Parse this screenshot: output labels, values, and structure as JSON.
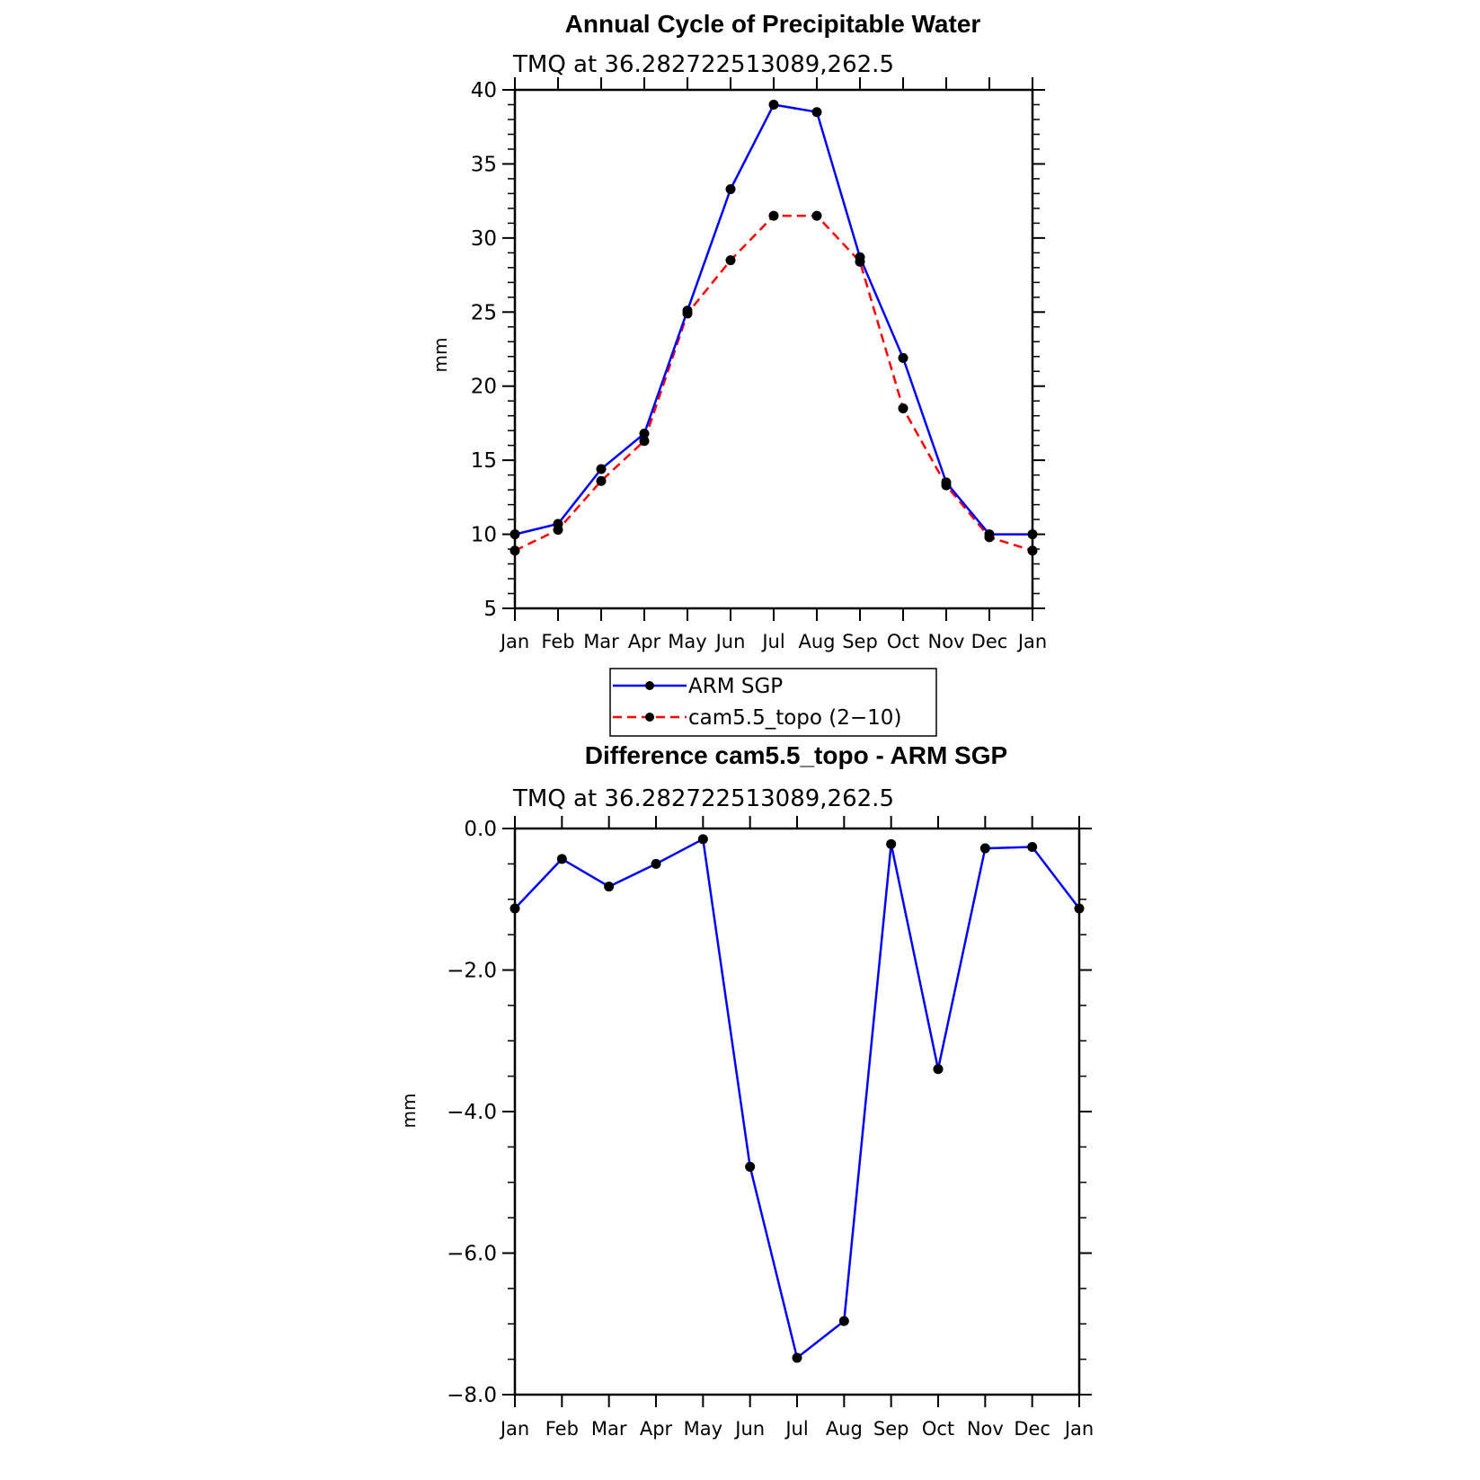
{
  "chart_data": [
    {
      "type": "line",
      "title": "Annual Cycle of Precipitable Water",
      "subtitle": "TMQ at 36.282722513089,262.5",
      "xlabel": "",
      "ylabel": "mm",
      "categories": [
        "Jan",
        "Feb",
        "Mar",
        "Apr",
        "May",
        "Jun",
        "Jul",
        "Aug",
        "Sep",
        "Oct",
        "Nov",
        "Dec",
        "Jan"
      ],
      "ylim": [
        5,
        40
      ],
      "yticks": [
        5,
        10,
        15,
        20,
        25,
        30,
        35,
        40
      ],
      "ytick_labels": [
        "5",
        "10",
        "15",
        "20",
        "25",
        "30",
        "35",
        "40"
      ],
      "grid": false,
      "legend_position": "below",
      "series": [
        {
          "name": "ARM SGP",
          "color": "#0000ff",
          "dash": "solid",
          "values": [
            10.0,
            10.7,
            14.4,
            16.8,
            25.1,
            33.3,
            39.0,
            38.5,
            28.7,
            21.9,
            13.5,
            10.0,
            10.0
          ]
        },
        {
          "name": "cam5.5_topo (2−10)",
          "color": "#ff0000",
          "dash": "dashed",
          "values": [
            8.9,
            10.3,
            13.6,
            16.3,
            24.9,
            28.5,
            31.5,
            31.5,
            28.4,
            18.5,
            13.3,
            9.8,
            8.9
          ]
        }
      ]
    },
    {
      "type": "line",
      "title": "Difference cam5.5_topo - ARM SGP",
      "subtitle": "TMQ at 36.282722513089,262.5",
      "xlabel": "",
      "ylabel": "mm",
      "categories": [
        "Jan",
        "Feb",
        "Mar",
        "Apr",
        "May",
        "Jun",
        "Jul",
        "Aug",
        "Sep",
        "Oct",
        "Nov",
        "Dec",
        "Jan"
      ],
      "ylim": [
        -8.0,
        0.0
      ],
      "yticks": [
        0.0,
        -2.0,
        -4.0,
        -6.0,
        -8.0
      ],
      "ytick_labels": [
        "0.0",
        "−2.0",
        "−4.0",
        "−6.0",
        "−8.0"
      ],
      "grid": false,
      "series": [
        {
          "color": "#0000ff",
          "dash": "solid",
          "values": [
            -1.13,
            -0.43,
            -0.82,
            -0.5,
            -0.15,
            -4.78,
            -7.48,
            -6.96,
            -0.22,
            -3.4,
            -0.28,
            -0.26,
            -1.13
          ]
        }
      ]
    }
  ]
}
